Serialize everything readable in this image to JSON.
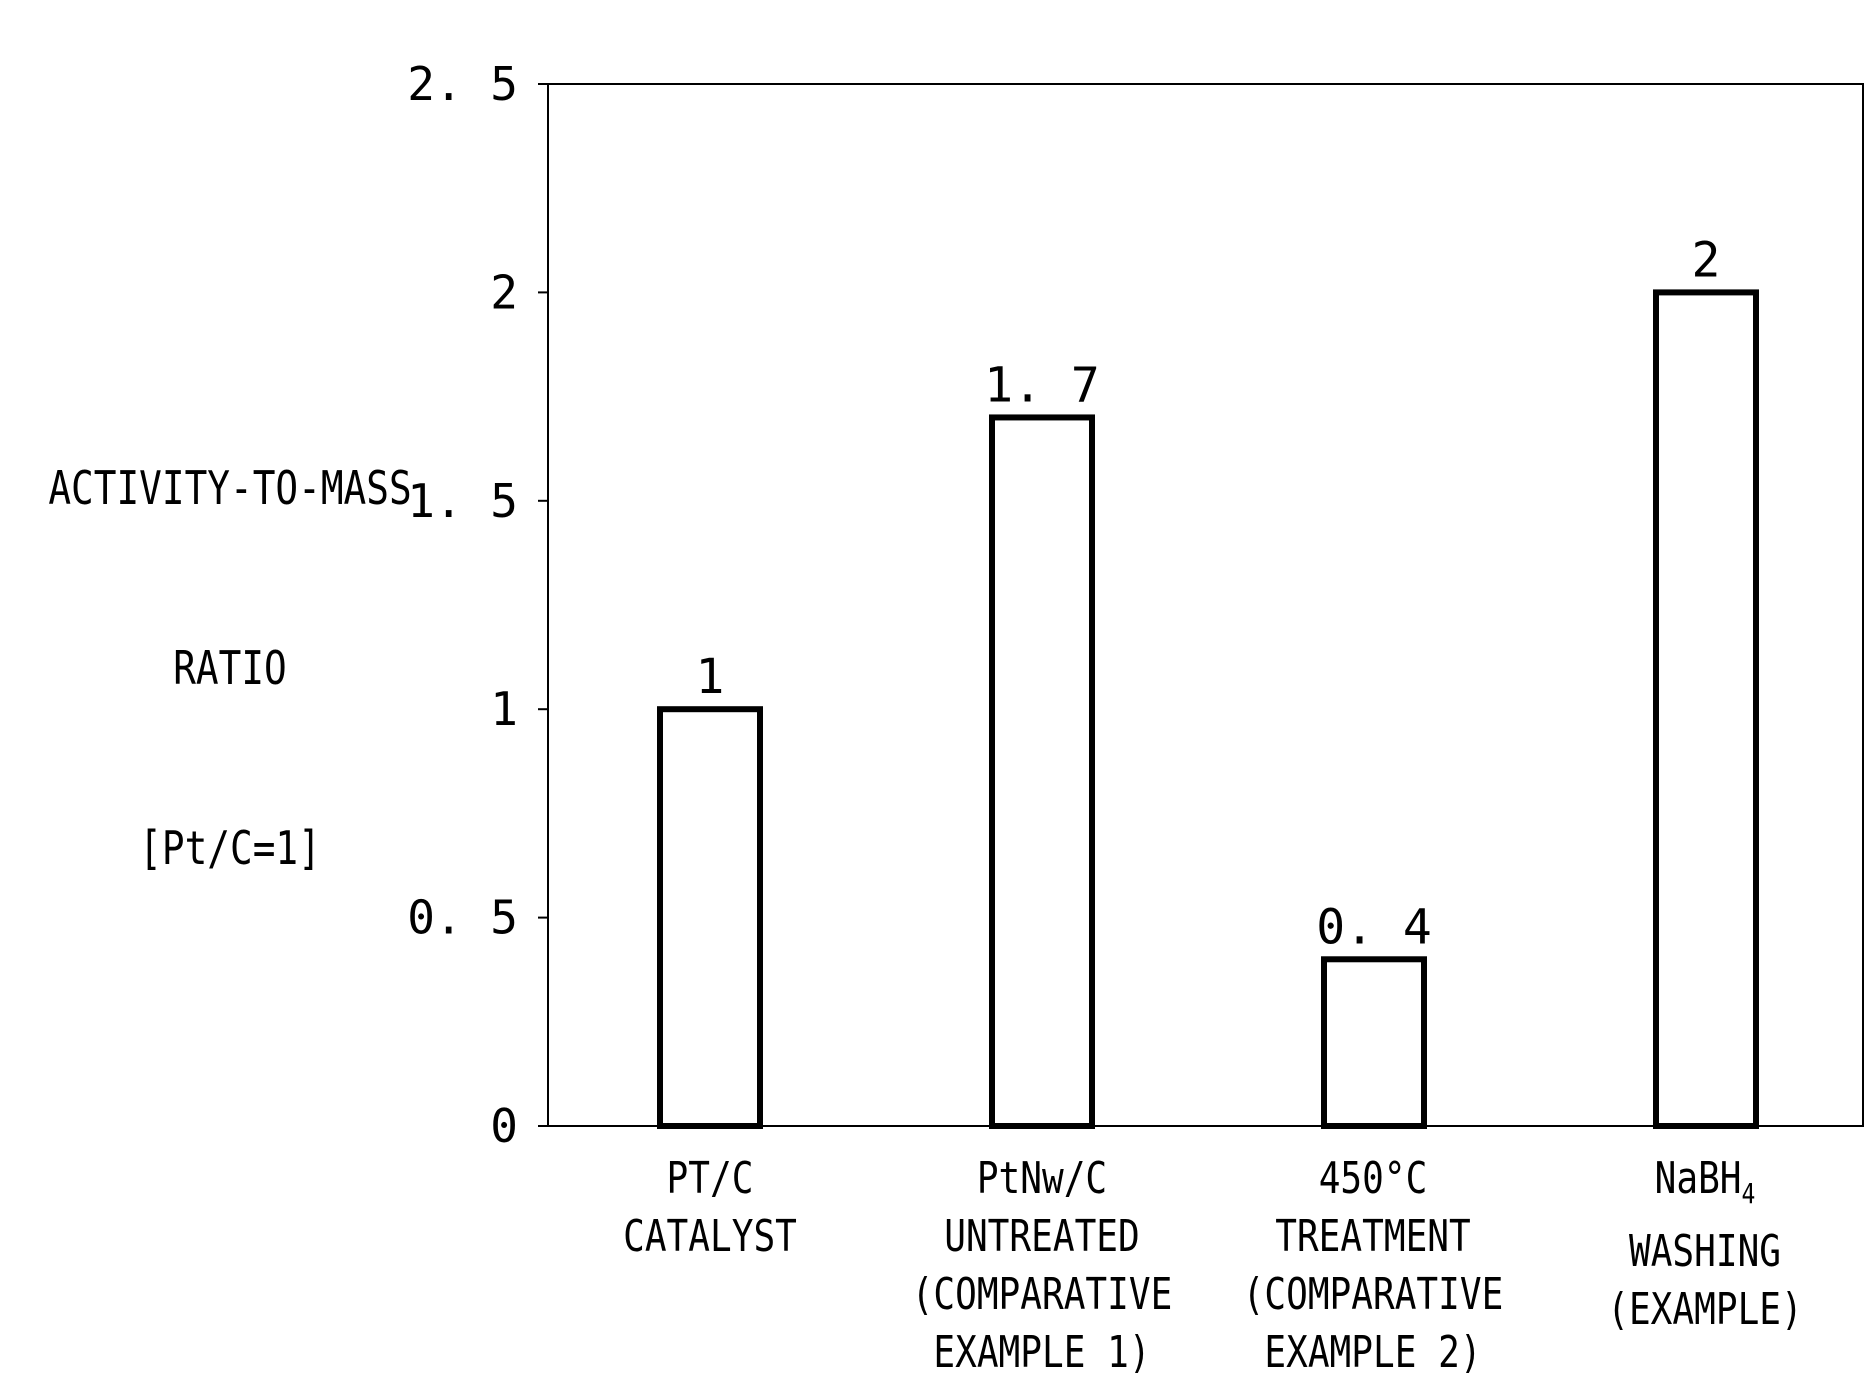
{
  "chart_data": {
    "type": "bar",
    "title": "",
    "ylabel_lines": [
      "ACTIVITY-TO-MASS",
      "RATIO",
      "[Pt/C=1]"
    ],
    "xlabel": "",
    "ylim": [
      0,
      2.5
    ],
    "yticks": [
      0,
      0.5,
      1,
      1.5,
      2,
      2.5
    ],
    "ytick_labels": [
      "0",
      "0. 5",
      "1",
      "1. 5",
      "2",
      "2. 5"
    ],
    "grid": false,
    "categories": [
      {
        "lines": [
          "PT/C",
          "CATALYST"
        ]
      },
      {
        "lines": [
          "PtNw/C",
          "UNTREATED",
          "(COMPARATIVE",
          "EXAMPLE 1)"
        ]
      },
      {
        "lines": [
          "450°C",
          "TREATMENT",
          "(COMPARATIVE",
          "EXAMPLE 2)"
        ]
      },
      {
        "lines": [
          "NaBH",
          "WASHING",
          "(EXAMPLE)"
        ],
        "subscript": "4"
      }
    ],
    "values": [
      1,
      1.7,
      0.4,
      2
    ],
    "value_labels": [
      "1",
      "1. 7",
      "0. 4",
      "2"
    ]
  }
}
